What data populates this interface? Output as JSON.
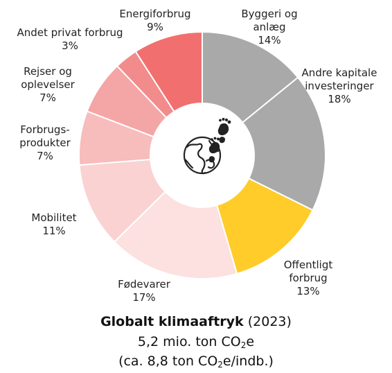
{
  "chart_data": {
    "type": "pie",
    "variant": "donut",
    "slices": [
      {
        "name": "Byggeri og anlæg",
        "lines": [
          "Byggeri og",
          "anlæg"
        ],
        "value": 14,
        "label": "14%",
        "color": "#a9a9a9"
      },
      {
        "name": "Andre kapitale investeringer",
        "lines": [
          "Andre kapitale",
          "investeringer"
        ],
        "value": 18,
        "label": "18%",
        "color": "#a9a9a9"
      },
      {
        "name": "Offentligt forbrug",
        "lines": [
          "Offentligt",
          "forbrug"
        ],
        "value": 13,
        "label": "13%",
        "color": "#ffcc29"
      },
      {
        "name": "Fødevarer",
        "lines": [
          "Fødevarer"
        ],
        "value": 17,
        "label": "17%",
        "color": "#fde0e0"
      },
      {
        "name": "Mobilitet",
        "lines": [
          "Mobilitet"
        ],
        "value": 11,
        "label": "11%",
        "color": "#fad2d2"
      },
      {
        "name": "Forbrugsprodukter",
        "lines": [
          "Forbrugs-",
          "produkter"
        ],
        "value": 7,
        "label": "7%",
        "color": "#f7bcbc"
      },
      {
        "name": "Rejser og oplevelser",
        "lines": [
          "Rejser og",
          "oplevelser"
        ],
        "value": 7,
        "label": "7%",
        "color": "#f4a5a5"
      },
      {
        "name": "Andet privat forbrug",
        "lines": [
          "Andet privat forbrug"
        ],
        "value": 3,
        "label": "3%",
        "color": "#f28b8b"
      },
      {
        "name": "Energiforbrug",
        "lines": [
          "Energiforbrug"
        ],
        "value": 9,
        "label": "9%",
        "color": "#f26f6f"
      }
    ]
  },
  "caption": {
    "title_bold": "Globalt klimaaftryk",
    "title_year": "(2023)",
    "line2_pre": "5,2 mio. ton CO",
    "line2_sub": "2",
    "line2_post": "e",
    "line3_pre": "(ca. 8,8 ton CO",
    "line3_sub": "2",
    "line3_post": "e/indb.)"
  },
  "icons": {
    "center": "globe-footprint-icon"
  }
}
